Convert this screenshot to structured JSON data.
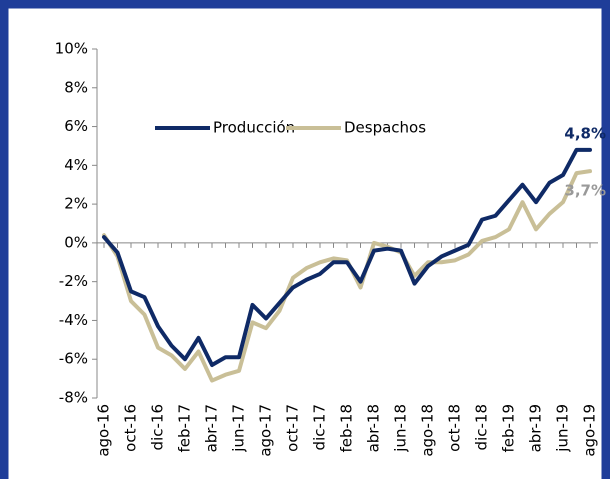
{
  "chart_data": {
    "type": "line",
    "categories": [
      "ago-16",
      null,
      "oct-16",
      null,
      "dic-16",
      null,
      "feb-17",
      null,
      "abr-17",
      null,
      "jun-17",
      null,
      "ago-17",
      null,
      "oct-17",
      null,
      "dic-17",
      null,
      "feb-18",
      null,
      "abr-18",
      null,
      "jun-18",
      null,
      "ago-18",
      null,
      "oct-18",
      null,
      "dic-18",
      null,
      "feb-19",
      null,
      "abr-19",
      null,
      "jun-19",
      null,
      "ago-19"
    ],
    "series": [
      {
        "name": "Producción",
        "color": "#0f2a66",
        "values": [
          0.3,
          -0.5,
          -2.5,
          -2.8,
          -4.3,
          -5.3,
          -6.0,
          -4.9,
          -6.3,
          -5.9,
          -5.9,
          -3.2,
          -3.9,
          -3.1,
          -2.3,
          -1.9,
          -1.6,
          -1.0,
          -1.0,
          -2.0,
          -0.4,
          -0.3,
          -0.4,
          -2.1,
          -1.2,
          -0.7,
          -0.4,
          -0.1,
          1.2,
          1.4,
          2.2,
          3.0,
          2.1,
          3.1,
          3.5,
          4.8,
          4.8
        ]
      },
      {
        "name": "Despachos",
        "color": "#c9bf97",
        "values": [
          0.4,
          -0.7,
          -3.0,
          -3.7,
          -5.4,
          -5.8,
          -6.5,
          -5.6,
          -7.1,
          -6.8,
          -6.6,
          -4.1,
          -4.4,
          -3.5,
          -1.8,
          -1.3,
          -1.0,
          -0.8,
          -0.9,
          -2.3,
          0.0,
          -0.2,
          -0.5,
          -1.7,
          -1.0,
          -1.0,
          -0.9,
          -0.6,
          0.1,
          0.3,
          0.7,
          2.1,
          0.7,
          1.5,
          2.1,
          3.6,
          3.7
        ]
      }
    ],
    "annotations": [
      {
        "text": "4,8%",
        "color": "#0f2a66"
      },
      {
        "text": "3,7%",
        "color": "#999999"
      }
    ],
    "ylim": [
      -8,
      10
    ],
    "yticks": [
      {
        "value": -8,
        "label": "-8%"
      },
      {
        "value": -6,
        "label": "-6%"
      },
      {
        "value": -4,
        "label": "-4%"
      },
      {
        "value": -2,
        "label": "-2%"
      },
      {
        "value": 0,
        "label": "0%"
      },
      {
        "value": 2,
        "label": "2%"
      },
      {
        "value": 4,
        "label": "4%"
      },
      {
        "value": 6,
        "label": "6%"
      },
      {
        "value": 8,
        "label": "8%"
      },
      {
        "value": 10,
        "label": "10%"
      }
    ],
    "legend": "top"
  }
}
